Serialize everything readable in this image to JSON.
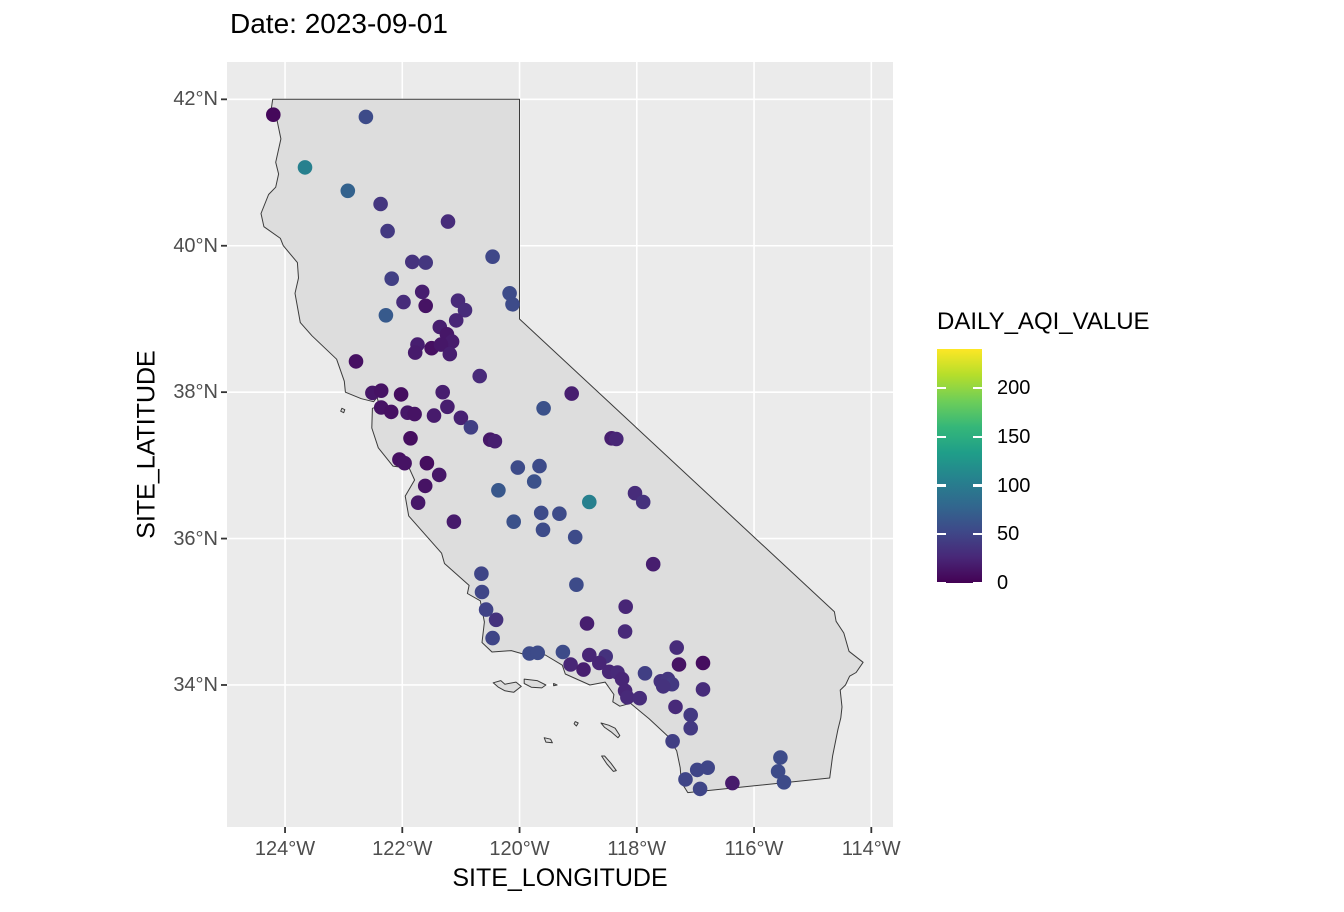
{
  "title": "Date: 2023-09-01",
  "x_axis": {
    "title": "SITE_LONGITUDE",
    "ticks": [
      {
        "label": "124°W",
        "value": -124
      },
      {
        "label": "122°W",
        "value": -122
      },
      {
        "label": "120°W",
        "value": -120
      },
      {
        "label": "118°W",
        "value": -118
      },
      {
        "label": "116°W",
        "value": -116
      },
      {
        "label": "114°W",
        "value": -114
      }
    ]
  },
  "y_axis": {
    "title": "SITE_LATITUDE",
    "ticks": [
      {
        "label": "42°N",
        "value": 42
      },
      {
        "label": "40°N",
        "value": 40
      },
      {
        "label": "38°N",
        "value": 38
      },
      {
        "label": "36°N",
        "value": 36
      },
      {
        "label": "34°N",
        "value": 34
      }
    ]
  },
  "legend": {
    "title": "DAILY_AQI_VALUE",
    "ticks": [
      0,
      50,
      100,
      150,
      200
    ],
    "domain": [
      0,
      240
    ]
  },
  "colors": {
    "panel_background": "#EBEBEB",
    "gridline": "#FFFFFF",
    "state_fill": "#DDDDDD",
    "state_stroke": "#3B3B3B",
    "axis_text": "#4D4D4D",
    "tick_mark": "#333333",
    "title_text": "#000000",
    "viridis_stops": [
      "#440154",
      "#482878",
      "#3e4989",
      "#31688e",
      "#26828e",
      "#1f9e89",
      "#35b779",
      "#6ece58",
      "#b5de2b",
      "#fde725"
    ]
  },
  "chart_data": {
    "type": "scatter",
    "title": "Date: 2023-09-01",
    "xlabel": "SITE_LONGITUDE",
    "ylabel": "SITE_LATITUDE",
    "color_field": "DAILY_AQI_VALUE",
    "color_scale": "viridis",
    "color_domain": [
      0,
      240
    ],
    "xlim": [
      -124.99,
      -113.63
    ],
    "ylim": [
      32.06,
      42.51
    ],
    "grid": true,
    "legend_position": "right",
    "points_format": [
      "site_longitude",
      "site_latitude",
      "daily_aqi_value"
    ],
    "points": [
      [
        -124.2,
        41.79,
        5
      ],
      [
        -122.62,
        41.76,
        55
      ],
      [
        -123.66,
        41.07,
        105
      ],
      [
        -122.93,
        40.75,
        75
      ],
      [
        -122.37,
        40.57,
        38
      ],
      [
        -121.22,
        40.33,
        30
      ],
      [
        -122.25,
        40.2,
        40
      ],
      [
        -120.46,
        39.85,
        52
      ],
      [
        -121.83,
        39.78,
        35
      ],
      [
        -121.6,
        39.77,
        38
      ],
      [
        -122.18,
        39.55,
        45
      ],
      [
        -121.66,
        39.37,
        20
      ],
      [
        -120.17,
        39.35,
        55
      ],
      [
        -121.98,
        39.23,
        30
      ],
      [
        -121.6,
        39.18,
        12
      ],
      [
        -121.05,
        39.25,
        28
      ],
      [
        -120.12,
        39.2,
        55
      ],
      [
        -122.28,
        39.05,
        68
      ],
      [
        -120.93,
        39.12,
        30
      ],
      [
        -121.36,
        38.89,
        20
      ],
      [
        -121.08,
        38.98,
        25
      ],
      [
        -121.24,
        38.79,
        15
      ],
      [
        -121.15,
        38.69,
        18
      ],
      [
        -121.74,
        38.65,
        20
      ],
      [
        -121.5,
        38.6,
        10
      ],
      [
        -121.34,
        38.65,
        15
      ],
      [
        -121.78,
        38.54,
        18
      ],
      [
        -121.19,
        38.52,
        20
      ],
      [
        -122.79,
        38.42,
        10
      ],
      [
        -120.68,
        38.22,
        28
      ],
      [
        -122.51,
        37.99,
        15
      ],
      [
        -122.36,
        38.02,
        12
      ],
      [
        -122.02,
        37.97,
        8
      ],
      [
        -121.31,
        38.0,
        20
      ],
      [
        -122.36,
        37.79,
        12
      ],
      [
        -122.19,
        37.73,
        10
      ],
      [
        -121.91,
        37.72,
        15
      ],
      [
        -121.79,
        37.7,
        12
      ],
      [
        -121.46,
        37.68,
        18
      ],
      [
        -121.23,
        37.8,
        20
      ],
      [
        -121.0,
        37.65,
        22
      ],
      [
        -120.83,
        37.52,
        45
      ],
      [
        -119.59,
        37.78,
        60
      ],
      [
        -120.5,
        37.35,
        15
      ],
      [
        -120.42,
        37.33,
        20
      ],
      [
        -121.86,
        37.37,
        8
      ],
      [
        -122.05,
        37.08,
        10
      ],
      [
        -121.96,
        37.03,
        12
      ],
      [
        -121.58,
        37.03,
        8
      ],
      [
        -121.37,
        36.87,
        15
      ],
      [
        -121.61,
        36.72,
        12
      ],
      [
        -120.36,
        36.66,
        65
      ],
      [
        -120.03,
        36.97,
        55
      ],
      [
        -119.66,
        36.99,
        55
      ],
      [
        -119.75,
        36.78,
        60
      ],
      [
        -121.73,
        36.49,
        15
      ],
      [
        -121.12,
        36.23,
        18
      ],
      [
        -120.1,
        36.23,
        60
      ],
      [
        -119.63,
        36.35,
        55
      ],
      [
        -119.32,
        36.34,
        55
      ],
      [
        -119.6,
        36.12,
        55
      ],
      [
        -119.05,
        36.02,
        55
      ],
      [
        -119.11,
        37.98,
        20
      ],
      [
        -118.43,
        37.37,
        20
      ],
      [
        -118.35,
        37.36,
        25
      ],
      [
        -118.03,
        36.62,
        30
      ],
      [
        -117.89,
        36.5,
        35
      ],
      [
        -118.81,
        36.5,
        105
      ],
      [
        -117.72,
        35.65,
        20
      ],
      [
        -119.03,
        35.37,
        55
      ],
      [
        -118.19,
        35.07,
        25
      ],
      [
        -118.85,
        34.84,
        20
      ],
      [
        -118.2,
        34.73,
        28
      ],
      [
        -117.32,
        34.51,
        30
      ],
      [
        -120.65,
        35.52,
        50
      ],
      [
        -120.64,
        35.27,
        50
      ],
      [
        -120.57,
        35.03,
        48
      ],
      [
        -120.4,
        34.89,
        35
      ],
      [
        -120.46,
        34.64,
        50
      ],
      [
        -119.83,
        34.43,
        55
      ],
      [
        -119.69,
        34.44,
        55
      ],
      [
        -119.26,
        34.45,
        55
      ],
      [
        -119.13,
        34.28,
        25
      ],
      [
        -118.81,
        34.41,
        25
      ],
      [
        -118.91,
        34.21,
        20
      ],
      [
        -118.53,
        34.39,
        35
      ],
      [
        -118.64,
        34.3,
        25
      ],
      [
        -118.47,
        34.18,
        25
      ],
      [
        -118.33,
        34.17,
        28
      ],
      [
        -118.25,
        34.08,
        25
      ],
      [
        -117.86,
        34.16,
        45
      ],
      [
        -118.2,
        33.92,
        25
      ],
      [
        -118.16,
        33.83,
        28
      ],
      [
        -117.95,
        33.82,
        30
      ],
      [
        -117.59,
        34.05,
        35
      ],
      [
        -117.47,
        34.08,
        38
      ],
      [
        -117.4,
        34.01,
        40
      ],
      [
        -117.55,
        33.98,
        35
      ],
      [
        -117.28,
        34.28,
        12
      ],
      [
        -116.87,
        34.3,
        8
      ],
      [
        -116.87,
        33.94,
        30
      ],
      [
        -117.34,
        33.7,
        28
      ],
      [
        -117.08,
        33.59,
        40
      ],
      [
        -117.08,
        33.41,
        40
      ],
      [
        -117.39,
        33.23,
        45
      ],
      [
        -117.17,
        32.71,
        50
      ],
      [
        -116.97,
        32.84,
        50
      ],
      [
        -116.79,
        32.87,
        50
      ],
      [
        -116.92,
        32.58,
        50
      ],
      [
        -116.37,
        32.66,
        18
      ],
      [
        -115.55,
        33.01,
        55
      ],
      [
        -115.59,
        32.82,
        55
      ],
      [
        -115.49,
        32.67,
        55
      ]
    ],
    "california_border": [
      [
        -124.21,
        42.0
      ],
      [
        -120.0,
        42.0
      ],
      [
        -120.0,
        39.0
      ],
      [
        -114.63,
        35.0
      ],
      [
        -114.6,
        34.87
      ],
      [
        -114.47,
        34.71
      ],
      [
        -114.38,
        34.46
      ],
      [
        -114.14,
        34.31
      ],
      [
        -114.26,
        34.17
      ],
      [
        -114.37,
        34.12
      ],
      [
        -114.44,
        34.0
      ],
      [
        -114.53,
        33.93
      ],
      [
        -114.5,
        33.7
      ],
      [
        -114.52,
        33.55
      ],
      [
        -114.57,
        33.39
      ],
      [
        -114.66,
        33.03
      ],
      [
        -114.71,
        32.73
      ],
      [
        -117.13,
        32.53
      ],
      [
        -117.24,
        32.67
      ],
      [
        -117.26,
        32.87
      ],
      [
        -117.32,
        33.1
      ],
      [
        -117.47,
        33.3
      ],
      [
        -117.79,
        33.54
      ],
      [
        -118.11,
        33.75
      ],
      [
        -118.29,
        33.71
      ],
      [
        -118.41,
        33.77
      ],
      [
        -118.39,
        33.87
      ],
      [
        -118.54,
        34.04
      ],
      [
        -118.8,
        34.0
      ],
      [
        -119.22,
        34.15
      ],
      [
        -119.27,
        34.27
      ],
      [
        -119.56,
        34.41
      ],
      [
        -119.88,
        34.41
      ],
      [
        -120.14,
        34.47
      ],
      [
        -120.47,
        34.45
      ],
      [
        -120.64,
        34.58
      ],
      [
        -120.6,
        34.86
      ],
      [
        -120.67,
        35.15
      ],
      [
        -120.89,
        35.25
      ],
      [
        -120.86,
        35.36
      ],
      [
        -121.28,
        35.66
      ],
      [
        -121.33,
        35.8
      ],
      [
        -121.89,
        36.31
      ],
      [
        -121.95,
        36.58
      ],
      [
        -121.79,
        36.8
      ],
      [
        -121.88,
        36.96
      ],
      [
        -122.16,
        36.99
      ],
      [
        -122.41,
        37.24
      ],
      [
        -122.52,
        37.51
      ],
      [
        -122.51,
        37.78
      ],
      [
        -122.39,
        37.81
      ],
      [
        -122.43,
        37.93
      ],
      [
        -122.49,
        37.87
      ],
      [
        -122.7,
        37.91
      ],
      [
        -122.97,
        38.0
      ],
      [
        -122.99,
        38.15
      ],
      [
        -123.12,
        38.45
      ],
      [
        -123.54,
        38.77
      ],
      [
        -123.74,
        38.95
      ],
      [
        -123.83,
        39.35
      ],
      [
        -123.77,
        39.56
      ],
      [
        -123.79,
        39.77
      ],
      [
        -124.03,
        40.0
      ],
      [
        -124.08,
        40.1
      ],
      [
        -124.36,
        40.26
      ],
      [
        -124.41,
        40.44
      ],
      [
        -124.28,
        40.7
      ],
      [
        -124.16,
        40.8
      ],
      [
        -124.11,
        40.98
      ],
      [
        -124.16,
        41.14
      ],
      [
        -124.07,
        41.46
      ],
      [
        -124.14,
        41.73
      ],
      [
        -124.25,
        41.79
      ],
      [
        -124.21,
        42.0
      ]
    ],
    "islands": [
      [
        [
          -120.45,
          34.03
        ],
        [
          -120.32,
          34.06
        ],
        [
          -120.25,
          34.01
        ],
        [
          -120.06,
          34.04
        ],
        [
          -119.97,
          33.98
        ],
        [
          -120.1,
          33.9
        ],
        [
          -120.25,
          33.92
        ],
        [
          -120.36,
          33.97
        ]
      ],
      [
        [
          -119.92,
          34.08
        ],
        [
          -119.7,
          34.06
        ],
        [
          -119.55,
          34.0
        ],
        [
          -119.62,
          33.96
        ],
        [
          -119.8,
          33.97
        ],
        [
          -119.92,
          34.02
        ]
      ],
      [
        [
          -119.42,
          34.02
        ],
        [
          -119.36,
          34.0
        ],
        [
          -119.42,
          33.99
        ]
      ],
      [
        [
          -119.05,
          33.5
        ],
        [
          -119.0,
          33.48
        ],
        [
          -119.03,
          33.44
        ],
        [
          -119.07,
          33.47
        ]
      ],
      [
        [
          -119.58,
          33.28
        ],
        [
          -119.47,
          33.26
        ],
        [
          -119.44,
          33.21
        ],
        [
          -119.55,
          33.22
        ]
      ],
      [
        [
          -118.61,
          33.48
        ],
        [
          -118.48,
          33.45
        ],
        [
          -118.37,
          33.41
        ],
        [
          -118.29,
          33.31
        ],
        [
          -118.32,
          33.28
        ],
        [
          -118.44,
          33.36
        ],
        [
          -118.55,
          33.42
        ]
      ],
      [
        [
          -118.6,
          33.03
        ],
        [
          -118.51,
          32.92
        ],
        [
          -118.4,
          32.82
        ],
        [
          -118.35,
          32.83
        ],
        [
          -118.44,
          32.93
        ],
        [
          -118.55,
          33.03
        ]
      ],
      [
        [
          -123.03,
          37.78
        ],
        [
          -122.98,
          37.76
        ],
        [
          -123.0,
          37.72
        ],
        [
          -123.05,
          37.74
        ]
      ]
    ]
  }
}
